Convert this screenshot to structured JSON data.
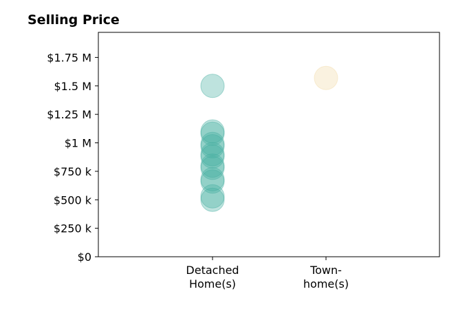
{
  "chart_data": {
    "type": "scatter",
    "title": "Selling Price",
    "xlabel": "",
    "ylabel": "",
    "categories": [
      [
        "Detached",
        "Home(s)"
      ],
      [
        "Town-",
        "home(s)"
      ]
    ],
    "y_ticks": [
      {
        "value": 0,
        "label": "$0"
      },
      {
        "value": 250000,
        "label": "$250 k"
      },
      {
        "value": 500000,
        "label": "$500 k"
      },
      {
        "value": 750000,
        "label": "$750 k"
      },
      {
        "value": 1000000,
        "label": "$1 M"
      },
      {
        "value": 1250000,
        "label": "$1.25 M"
      },
      {
        "value": 1500000,
        "label": "$1.5 M"
      },
      {
        "value": 1750000,
        "label": "$1.75 M"
      }
    ],
    "ylim": [
      0,
      1970000
    ],
    "grid": false,
    "series": [
      {
        "category_index": 0,
        "color": "#45aea0",
        "values": [
          1500000,
          1100000,
          1080000,
          990000,
          970000,
          900000,
          880000,
          800000,
          780000,
          680000,
          660000,
          530000,
          500000
        ]
      },
      {
        "category_index": 1,
        "color": "#f1d9a7",
        "values": [
          1570000
        ]
      }
    ]
  }
}
